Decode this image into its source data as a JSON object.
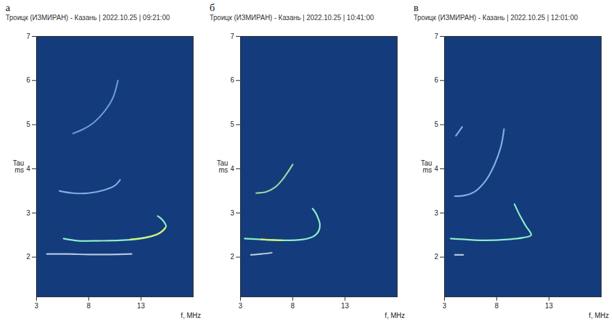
{
  "chart_data": [
    {
      "type": "line",
      "panel_label": "а",
      "title": "Троицк (ИЗМИРАН) - Казань | 2022.10.25 | 09:21:00",
      "xlabel": "f, MHz",
      "ylabel": "Tau ms",
      "xlim": [
        3,
        18
      ],
      "ylim": [
        1.1,
        7
      ],
      "xticks": [
        3,
        8,
        13
      ],
      "yticks": [
        2,
        3,
        4,
        5,
        6,
        7
      ],
      "series": [
        {
          "color": "#8ff0c8",
          "points": [
            [
              5.6,
              2.42
            ],
            [
              7,
              2.37
            ],
            [
              9,
              2.37
            ],
            [
              11,
              2.38
            ],
            [
              13,
              2.42
            ],
            [
              14,
              2.47
            ],
            [
              14.8,
              2.55
            ],
            [
              15.3,
              2.65
            ],
            [
              15.4,
              2.7
            ],
            [
              15.2,
              2.8
            ],
            [
              14.9,
              2.88
            ],
            [
              14.6,
              2.93
            ]
          ]
        },
        {
          "color": "#d8f070",
          "points": [
            [
              12,
              2.4
            ],
            [
              13.5,
              2.45
            ],
            [
              14.6,
              2.52
            ],
            [
              15.1,
              2.6
            ],
            [
              15.3,
              2.66
            ]
          ]
        },
        {
          "color": "#b8c8e0",
          "points": [
            [
              4,
              2.07
            ],
            [
              6,
              2.07
            ],
            [
              8,
              2.06
            ],
            [
              10,
              2.06
            ],
            [
              12.1,
              2.07
            ]
          ]
        },
        {
          "color": "#7fb0e8",
          "points": [
            [
              5.2,
              3.5
            ],
            [
              6.5,
              3.45
            ],
            [
              8,
              3.45
            ],
            [
              9.5,
              3.52
            ],
            [
              10.5,
              3.62
            ],
            [
              11,
              3.75
            ]
          ]
        },
        {
          "color": "#6a9ad8",
          "points": [
            [
              6.5,
              4.8
            ],
            [
              7.5,
              4.9
            ],
            [
              8.5,
              5.05
            ],
            [
              9.5,
              5.3
            ],
            [
              10.3,
              5.6
            ],
            [
              10.8,
              6.0
            ]
          ]
        }
      ]
    },
    {
      "type": "line",
      "panel_label": "б",
      "title": "Троицк (ИЗМИРАН) - Казань | 2022.10.25 | 10:41:00",
      "xlabel": "f, MHz",
      "ylabel": "Tau ms",
      "xlim": [
        3,
        18
      ],
      "ylim": [
        1.1,
        7
      ],
      "xticks": [
        3,
        8,
        13
      ],
      "yticks": [
        2,
        3,
        4,
        5,
        6,
        7
      ],
      "series": [
        {
          "color": "#8ff0c8",
          "points": [
            [
              3.4,
              2.42
            ],
            [
              5,
              2.4
            ],
            [
              7,
              2.38
            ],
            [
              9,
              2.4
            ],
            [
              10,
              2.47
            ],
            [
              10.5,
              2.6
            ],
            [
              10.6,
              2.75
            ],
            [
              10.4,
              2.9
            ],
            [
              10.2,
              3.0
            ],
            [
              9.9,
              3.1
            ]
          ]
        },
        {
          "color": "#d8f070",
          "points": [
            [
              5,
              2.4
            ],
            [
              6,
              2.39
            ],
            [
              7,
              2.38
            ]
          ]
        },
        {
          "color": "#b8c8e0",
          "points": [
            [
              4,
              2.05
            ],
            [
              5,
              2.07
            ],
            [
              6,
              2.1
            ]
          ]
        },
        {
          "color": "#9fd8a0",
          "points": [
            [
              4.5,
              3.45
            ],
            [
              5.5,
              3.48
            ],
            [
              6.3,
              3.58
            ],
            [
              7,
              3.75
            ],
            [
              7.6,
              3.95
            ],
            [
              8,
              4.1
            ]
          ]
        }
      ]
    },
    {
      "type": "line",
      "panel_label": "в",
      "title": "Троицк (ИЗМИРАН) - Казань | 2022.10.25 | 12:01:00",
      "xlabel": "f, MHz",
      "ylabel": "Tau ms",
      "xlim": [
        3,
        18
      ],
      "ylim": [
        1.1,
        7
      ],
      "xticks": [
        3,
        8,
        13
      ],
      "yticks": [
        2,
        3,
        4,
        5,
        6,
        7
      ],
      "series": [
        {
          "color": "#8ff0c8",
          "points": [
            [
              3.6,
              2.42
            ],
            [
              5,
              2.4
            ],
            [
              7,
              2.38
            ],
            [
              9,
              2.4
            ],
            [
              10.5,
              2.44
            ],
            [
              11.3,
              2.5
            ],
            [
              10.8,
              2.7
            ],
            [
              10.2,
              2.95
            ],
            [
              9.7,
              3.2
            ]
          ]
        },
        {
          "color": "#b8c8e0",
          "points": [
            [
              4,
              2.05
            ],
            [
              4.8,
              2.05
            ]
          ]
        },
        {
          "color": "#7fb0e8",
          "points": [
            [
              4,
              3.38
            ],
            [
              5,
              3.4
            ],
            [
              6,
              3.5
            ],
            [
              7,
              3.75
            ],
            [
              7.8,
              4.1
            ],
            [
              8.4,
              4.5
            ],
            [
              8.7,
              4.9
            ]
          ]
        },
        {
          "color": "#7fb0e8",
          "points": [
            [
              4.1,
              4.75
            ],
            [
              4.4,
              4.85
            ],
            [
              4.7,
              4.95
            ]
          ]
        }
      ]
    }
  ]
}
